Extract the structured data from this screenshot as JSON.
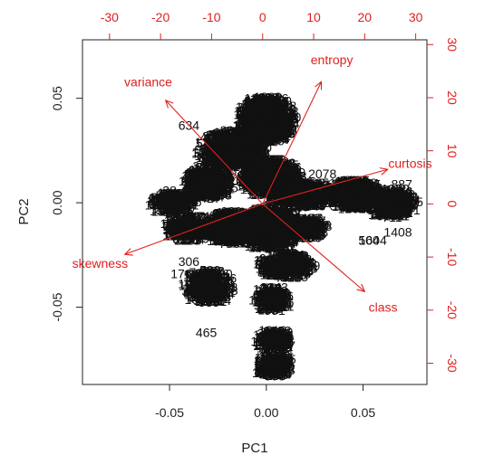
{
  "chart_data": {
    "type": "scatter",
    "title": "",
    "xlabel": "PC1",
    "ylabel": "PC2",
    "xlim": [
      -0.095,
      0.083
    ],
    "ylim": [
      -0.087,
      0.078
    ],
    "x_ticks": [
      "-0.05",
      "0.00",
      "0.05"
    ],
    "x_tick_values": [
      -0.05,
      0.0,
      0.05
    ],
    "y_ticks": [
      "-0.05",
      "0.00",
      "0.05"
    ],
    "y_tick_values": [
      -0.05,
      0.0,
      0.05
    ],
    "top_ticks": [
      "-30",
      "-20",
      "-10",
      "0",
      "10",
      "20",
      "30"
    ],
    "top_tick_values": [
      -30,
      -20,
      -10,
      0,
      10,
      20,
      30
    ],
    "right_ticks": [
      "30",
      "20",
      "10",
      "0",
      "-10",
      "-20",
      "-30"
    ],
    "right_tick_values": [
      30,
      20,
      10,
      0,
      -10,
      -20,
      -30
    ],
    "loading_lim_x": [
      -35.3,
      32.2
    ],
    "loading_lim_y": [
      -34.0,
      30.9
    ],
    "grid": false,
    "legend": "none",
    "colors": {
      "observations": "#111111",
      "loadings": "#e02020",
      "axes": "#222222"
    },
    "loadings": [
      {
        "name": "variance",
        "x": -19.0,
        "y": 19.5
      },
      {
        "name": "entropy",
        "x": 11.5,
        "y": 23.0
      },
      {
        "name": "curtosis",
        "x": 24.5,
        "y": 6.5
      },
      {
        "name": "skewness",
        "x": -27.0,
        "y": -9.5
      },
      {
        "name": "class",
        "x": 20.0,
        "y": -16.5
      }
    ],
    "point_labels": [
      {
        "label": "634",
        "x": -0.04,
        "y": 0.037
      },
      {
        "label": "28",
        "x": -0.05,
        "y": 0.006
      },
      {
        "label": "306",
        "x": -0.04,
        "y": -0.028
      },
      {
        "label": "176",
        "x": -0.044,
        "y": -0.034
      },
      {
        "label": "465",
        "x": -0.031,
        "y": -0.062
      },
      {
        "label": "504",
        "x": 0.053,
        "y": -0.018
      },
      {
        "label": "2078",
        "x": 0.029,
        "y": 0.014
      },
      {
        "label": "887",
        "x": 0.07,
        "y": 0.009
      },
      {
        "label": "1408",
        "x": 0.068,
        "y": -0.014
      },
      {
        "label": "1604",
        "x": 0.055,
        "y": -0.018
      },
      {
        "label": "1206",
        "x": 0.003,
        "y": -0.081
      }
    ]
  }
}
